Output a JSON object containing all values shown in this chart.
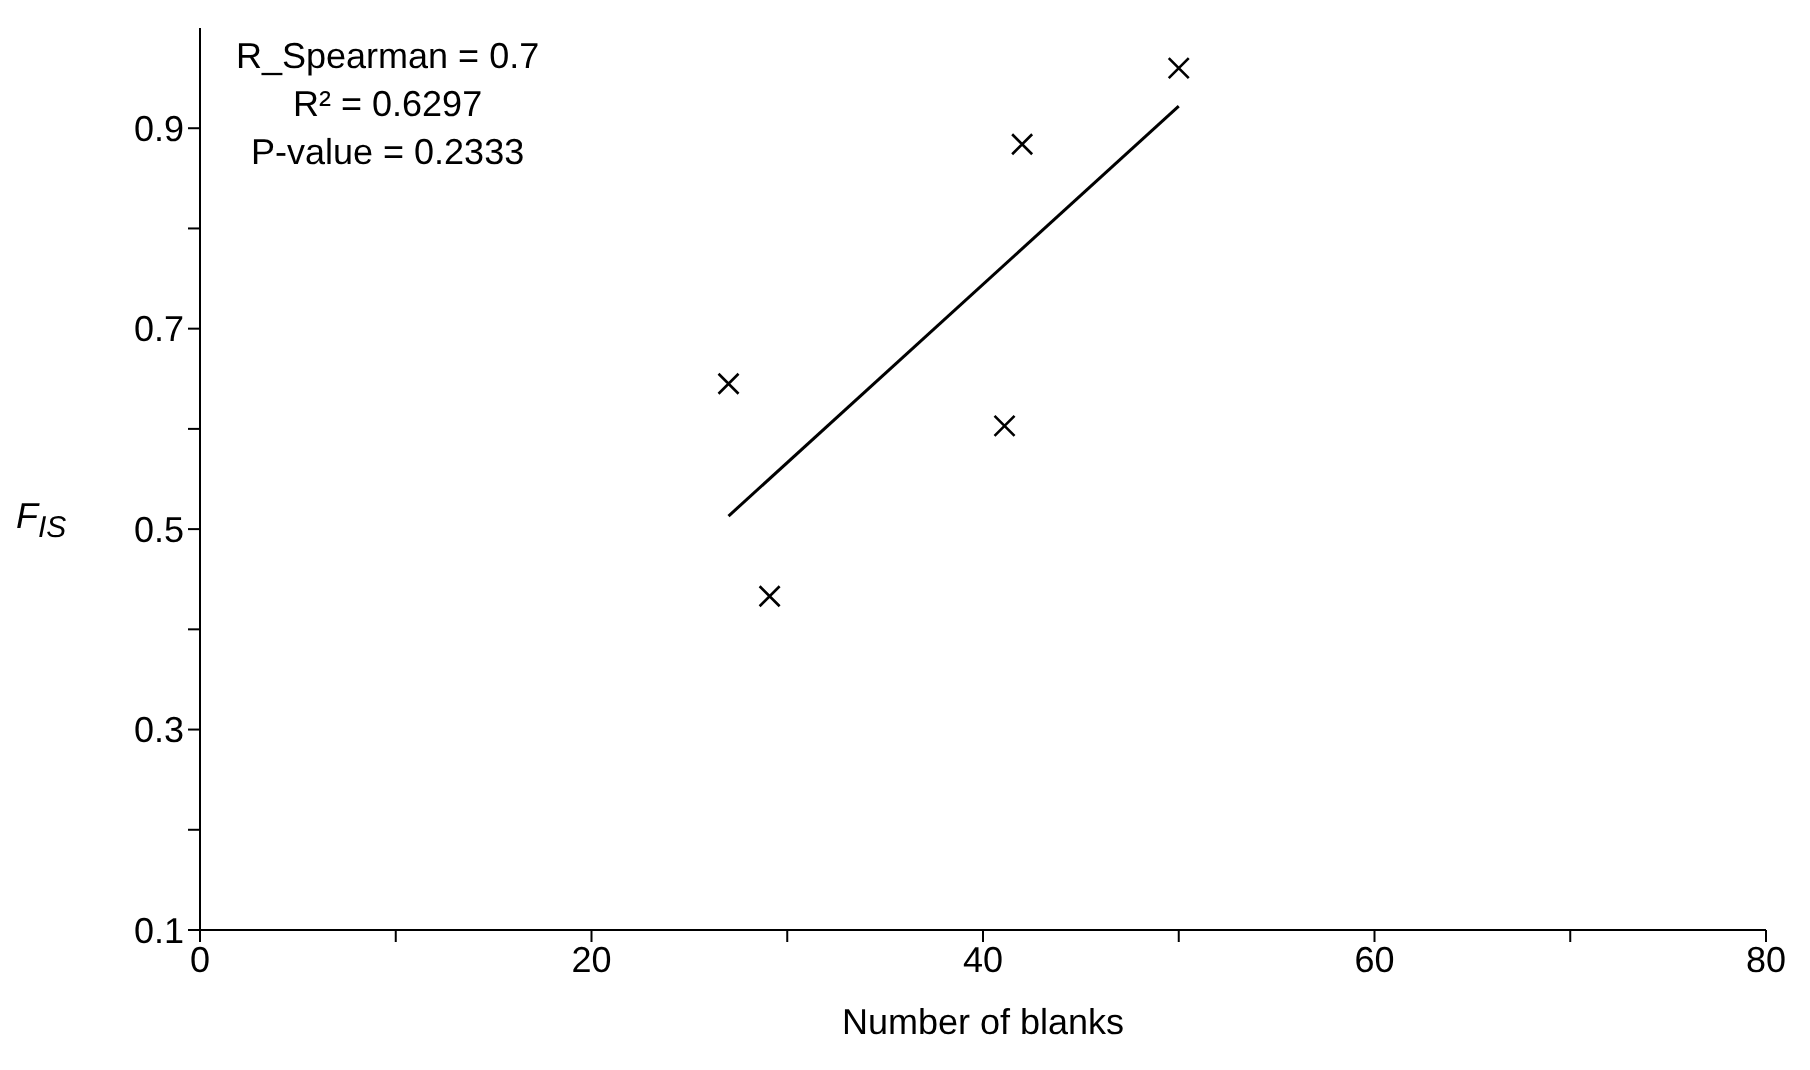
{
  "chart_data": {
    "type": "scatter",
    "xlabel": "Number of blanks",
    "ylabel": "F$_{IS}$",
    "annotations": [
      "R_Spearman = 0.7",
      "R² = 0.6297",
      "P-value = 0.2333"
    ],
    "xlim": [
      0,
      80
    ],
    "xticks": [
      0,
      {
        "value": 10,
        "label": null
      },
      20,
      {
        "value": 30,
        "label": null
      },
      40,
      {
        "value": 50,
        "label": null
      },
      60,
      {
        "value": 70,
        "label": null
      },
      80
    ],
    "ylim": [
      0.1,
      1.0
    ],
    "yticks": [
      0.1,
      {
        "value": 0.2,
        "label": null
      },
      0.3,
      {
        "value": 0.4,
        "label": null
      },
      0.5,
      {
        "value": 0.6,
        "label": null
      },
      0.7,
      {
        "value": 0.8,
        "label": null
      },
      0.9
    ],
    "grid": false,
    "legend": false,
    "series": [
      {
        "marker": "cross",
        "color": "#000000",
        "x": [
          27.0,
          29.1,
          41.1,
          42.0,
          50.0
        ],
        "values": [
          0.645,
          0.433,
          0.603,
          0.884,
          0.96
        ]
      },
      {
        "type": "line",
        "marker": "none",
        "color": "#000000",
        "x": [
          27,
          50
        ],
        "values": [
          0.513,
          0.922
        ]
      }
    ]
  }
}
